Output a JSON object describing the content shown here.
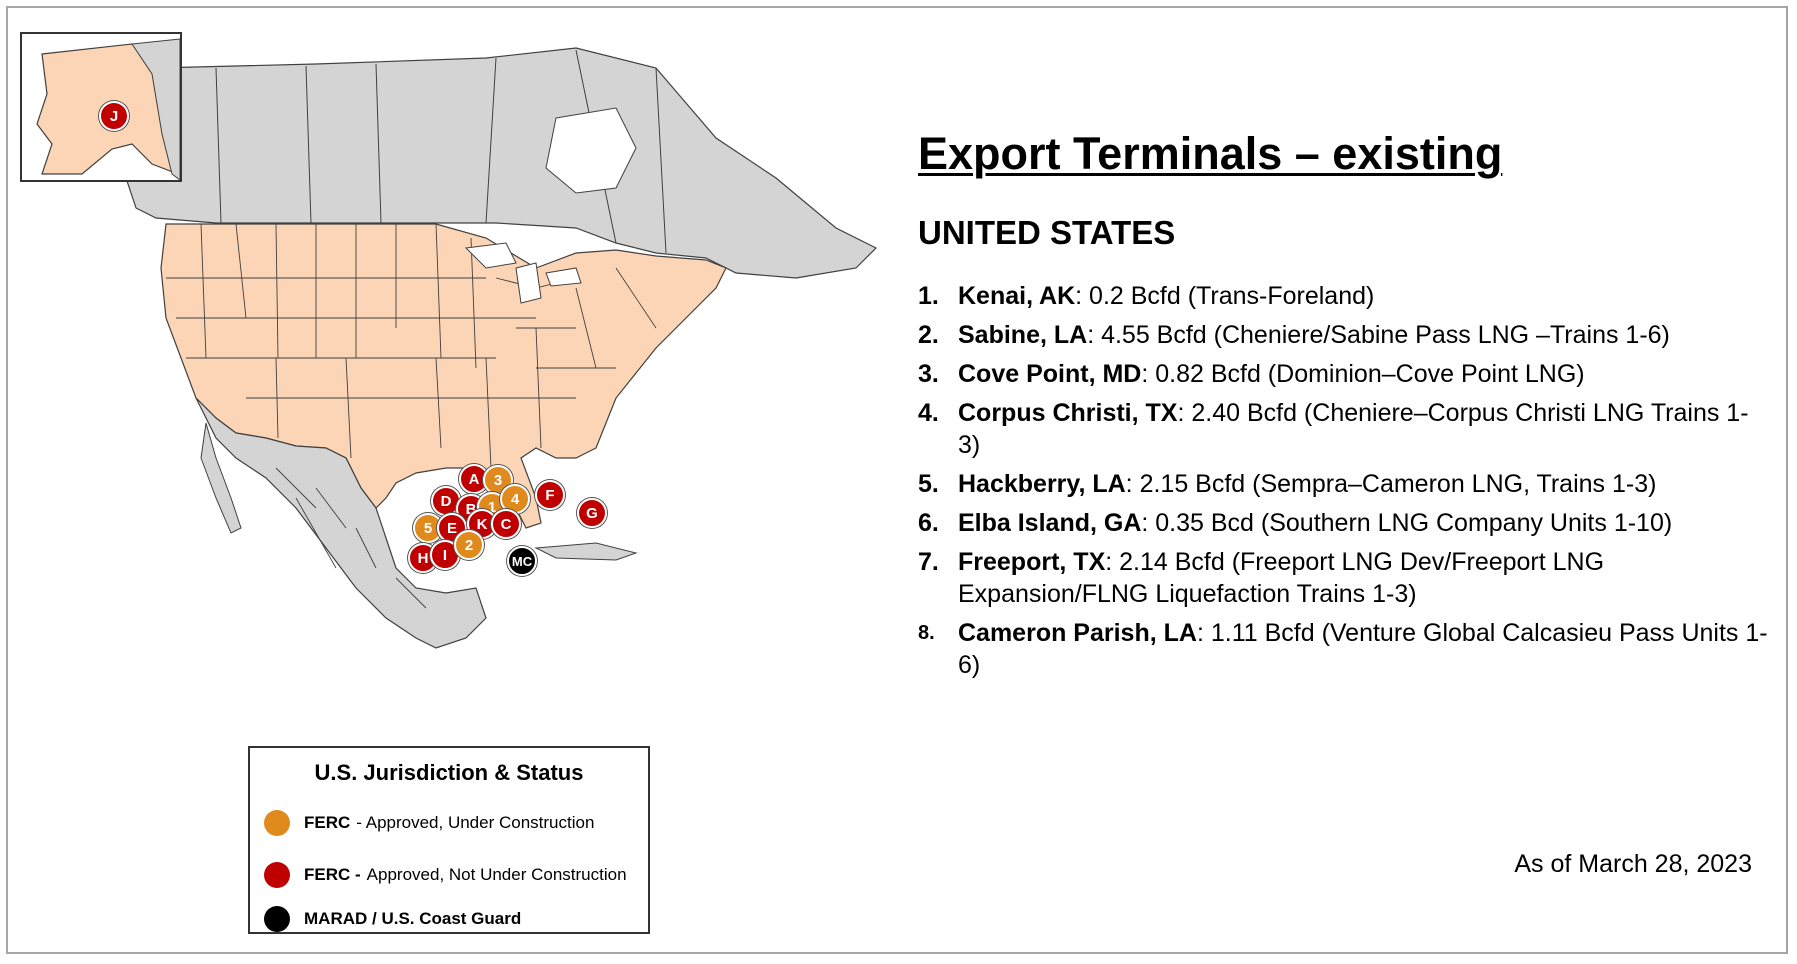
{
  "panel": {
    "title": "Export Terminals – existing",
    "country": "UNITED STATES",
    "terminals": [
      {
        "num": "1.",
        "name": "Kenai, AK",
        "detail": ": 0.2 Bcfd (Trans-Foreland)"
      },
      {
        "num": "2.",
        "name": "Sabine, LA",
        "detail": ": 4.55 Bcfd (Cheniere/Sabine Pass LNG –Trains 1-6)"
      },
      {
        "num": "3.",
        "name": "Cove Point, MD",
        "detail": ":  0.82 Bcfd (Dominion–Cove Point LNG)"
      },
      {
        "num": "4.",
        "name": "Corpus Christi, TX",
        "detail": ":  2.40 Bcfd (Cheniere–Corpus Christi LNG Trains 1-3)"
      },
      {
        "num": "5.",
        "name": "Hackberry, LA",
        "detail": ":  2.15 Bcfd (Sempra–Cameron LNG, Trains 1-3)"
      },
      {
        "num": "6.",
        "name": "Elba Island, GA",
        "detail": ": 0.35 Bcd (Southern LNG Company Units 1-10)"
      },
      {
        "num": "7.",
        "name": "Freeport, TX",
        "detail": ":  2.14 Bcfd (Freeport LNG Dev/Freeport LNG Expansion/FLNG Liquefaction Trains 1-3)"
      },
      {
        "num": "8.",
        "name": "Cameron Parish, LA",
        "detail": ":  1.11 Bcfd (Venture Global Calcasieu Pass Units 1-6)"
      }
    ],
    "as_of": "As of March 28, 2023"
  },
  "legend": {
    "title": "U.S. Jurisdiction & Status",
    "items": [
      {
        "agency": "FERC",
        "status": "- Approved, Under Construction",
        "color": "#e08a1e"
      },
      {
        "agency": "FERC -",
        "status": "Approved, Not Under Construction",
        "color": "#c00000"
      },
      {
        "agency": "MARAD / U.S. Coast Guard",
        "status": "",
        "color": "#000000"
      }
    ]
  },
  "map": {
    "colors": {
      "us": "#fbd5b5",
      "other": "#d4d4d4",
      "border": "#404040",
      "water": "#ffffff"
    },
    "markers": [
      {
        "label": "J",
        "status": "red"
      },
      {
        "label": "A",
        "status": "red"
      },
      {
        "label": "3",
        "status": "orange"
      },
      {
        "label": "D",
        "status": "red"
      },
      {
        "label": "B",
        "status": "red"
      },
      {
        "label": "1",
        "status": "orange"
      },
      {
        "label": "4",
        "status": "orange"
      },
      {
        "label": "F",
        "status": "red"
      },
      {
        "label": "G",
        "status": "red"
      },
      {
        "label": "5",
        "status": "orange"
      },
      {
        "label": "E",
        "status": "red"
      },
      {
        "label": "K",
        "status": "red"
      },
      {
        "label": "C",
        "status": "red"
      },
      {
        "label": "H",
        "status": "red"
      },
      {
        "label": "I",
        "status": "red"
      },
      {
        "label": "2",
        "status": "orange"
      },
      {
        "label": "MC",
        "status": "black"
      }
    ]
  }
}
